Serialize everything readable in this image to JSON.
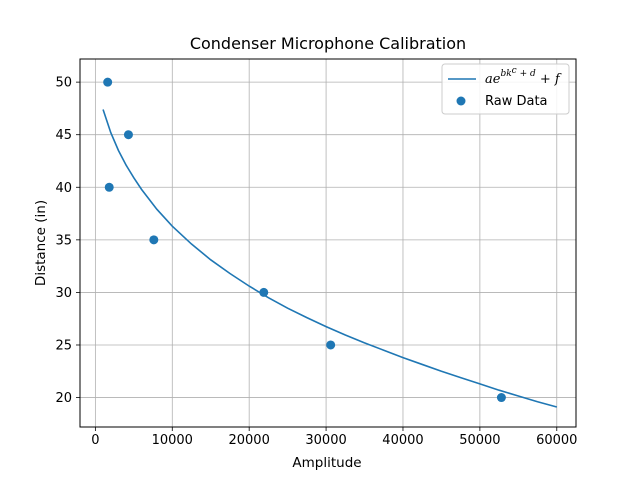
{
  "chart_data": {
    "type": "scatter",
    "title": "Condenser Microphone Calibration",
    "xlabel": "Amplitude",
    "ylabel": "Distance (in)",
    "xlim": [
      -2000,
      62500
    ],
    "ylim": [
      17.2,
      52.2
    ],
    "xticks": [
      0,
      10000,
      20000,
      30000,
      40000,
      50000,
      60000
    ],
    "yticks": [
      20,
      25,
      30,
      35,
      40,
      45,
      50
    ],
    "grid": true,
    "legend_position": "top-right",
    "series": [
      {
        "name": "Raw Data",
        "kind": "scatter",
        "color": "#1f77b4",
        "x": [
          1600,
          1800,
          4300,
          7600,
          21900,
          30600,
          52800
        ],
        "y": [
          50,
          40,
          45,
          35,
          30,
          25,
          20
        ]
      },
      {
        "name": "ae^{bk^c+d}+f",
        "kind": "line",
        "color": "#1f77b4",
        "x": [
          1000,
          2000,
          3000,
          4000,
          5000,
          6000,
          8000,
          10000,
          12500,
          15000,
          17500,
          20000,
          22500,
          25000,
          27500,
          30000,
          32500,
          35000,
          37500,
          40000,
          42500,
          45000,
          47500,
          50000,
          52500,
          55000,
          57500,
          60000
        ],
        "y": [
          47.4,
          45.2,
          43.5,
          42.1,
          40.9,
          39.8,
          37.9,
          36.3,
          34.6,
          33.1,
          31.8,
          30.6,
          29.5,
          28.5,
          27.6,
          26.75,
          25.95,
          25.2,
          24.5,
          23.8,
          23.15,
          22.5,
          21.9,
          21.3,
          20.7,
          20.15,
          19.6,
          19.1
        ]
      }
    ]
  },
  "legend": {
    "line_base": "ae",
    "line_exponent": "bk",
    "line_exponent_power": "c",
    "line_exponent_tail": " + d",
    "line_suffix": " + f",
    "scatter_label": "Raw Data"
  }
}
